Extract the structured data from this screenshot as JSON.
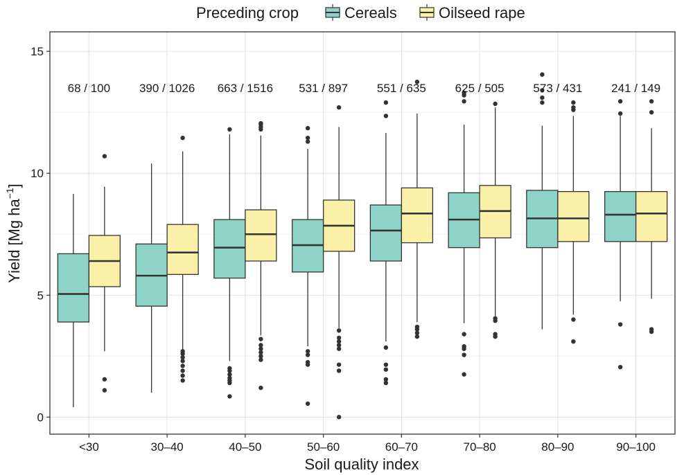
{
  "chart_data": {
    "type": "boxplot",
    "xlabel": "Soil quality index",
    "ylabel": "Yield [Mg ha",
    "ylabel_sup": "−1",
    "ylabel_close": "]",
    "ylim": [
      -0.7,
      15.8
    ],
    "yticks": [
      "0",
      "5",
      "10",
      "15"
    ],
    "grid": true,
    "legend": {
      "position": "top",
      "title": "Preceding crop",
      "entries": [
        "Cereals",
        "Oilseed rape"
      ]
    },
    "categories": [
      "<30",
      "30–40",
      "40–50",
      "50–60",
      "60–70",
      "70–80",
      "80–90",
      "90–100"
    ],
    "counts": [
      "68 / 100",
      "390 / 1026",
      "663 / 1516",
      "531 / 897",
      "551 / 635",
      "625 / 505",
      "573 / 431",
      "241 / 149"
    ],
    "series": [
      {
        "name": "Cereals",
        "color": "#8dd3c7",
        "boxes": [
          {
            "whisker_low": 0.4,
            "q1": 3.9,
            "median": 5.05,
            "q3": 6.7,
            "whisker_high": 9.15,
            "outliers": []
          },
          {
            "whisker_low": 1.0,
            "q1": 4.55,
            "median": 5.8,
            "q3": 7.1,
            "whisker_high": 10.4,
            "outliers": []
          },
          {
            "whisker_low": 2.3,
            "q1": 5.7,
            "median": 6.95,
            "q3": 8.1,
            "whisker_high": 11.6,
            "outliers": [
              0.85,
              1.4,
              1.5,
              1.6,
              1.75,
              1.9,
              2.0,
              11.8
            ]
          },
          {
            "whisker_low": 2.9,
            "q1": 5.95,
            "median": 7.05,
            "q3": 8.1,
            "whisker_high": 11.0,
            "outliers": [
              0.55,
              2.15,
              2.25,
              2.55,
              2.7,
              11.3,
              11.45,
              11.85
            ]
          },
          {
            "whisker_low": 3.1,
            "q1": 6.4,
            "median": 7.65,
            "q3": 8.7,
            "whisker_high": 11.65,
            "outliers": [
              1.4,
              1.55,
              1.95,
              2.15,
              2.85,
              12.35,
              12.9
            ]
          },
          {
            "whisker_low": 3.85,
            "q1": 6.95,
            "median": 8.1,
            "q3": 9.2,
            "whisker_high": 12.0,
            "outliers": [
              1.75,
              2.55,
              2.8,
              2.9,
              3.4,
              12.95,
              13.2,
              13.3
            ]
          },
          {
            "whisker_low": 3.6,
            "q1": 6.95,
            "median": 8.15,
            "q3": 9.3,
            "whisker_high": 11.95,
            "outliers": [
              12.9,
              13.1,
              13.4,
              14.05
            ]
          },
          {
            "whisker_low": 4.75,
            "q1": 7.2,
            "median": 8.3,
            "q3": 9.25,
            "whisker_high": 12.35,
            "outliers": [
              2.05,
              3.8,
              12.45,
              12.95
            ]
          }
        ]
      },
      {
        "name": "Oilseed rape",
        "color": "#fbf0a8",
        "boxes": [
          {
            "whisker_low": 2.7,
            "q1": 5.35,
            "median": 6.4,
            "q3": 7.45,
            "whisker_high": 9.45,
            "outliers": [
              1.1,
              1.55,
              10.7
            ]
          },
          {
            "whisker_low": 2.75,
            "q1": 5.85,
            "median": 6.75,
            "q3": 7.9,
            "whisker_high": 10.9,
            "outliers": [
              1.5,
              1.7,
              1.9,
              2.1,
              2.3,
              2.45,
              2.6,
              2.7,
              11.45
            ]
          },
          {
            "whisker_low": 3.35,
            "q1": 6.4,
            "median": 7.5,
            "q3": 8.5,
            "whisker_high": 11.55,
            "outliers": [
              1.2,
              2.35,
              2.5,
              2.65,
              2.8,
              2.95,
              3.2,
              11.8,
              11.9,
              12.0,
              12.05
            ]
          },
          {
            "whisker_low": 3.65,
            "q1": 6.8,
            "median": 7.85,
            "q3": 8.9,
            "whisker_high": 11.9,
            "outliers": [
              0.0,
              1.9,
              2.15,
              2.8,
              2.95,
              3.1,
              3.25,
              3.55,
              12.7
            ]
          },
          {
            "whisker_low": 3.9,
            "q1": 7.15,
            "median": 8.35,
            "q3": 9.4,
            "whisker_high": 12.45,
            "outliers": [
              3.3,
              3.45,
              3.6,
              3.7,
              13.75
            ]
          },
          {
            "whisker_low": 4.15,
            "q1": 7.35,
            "median": 8.45,
            "q3": 9.5,
            "whisker_high": 12.7,
            "outliers": [
              3.3,
              3.4,
              3.95,
              4.05,
              12.85
            ]
          },
          {
            "whisker_low": 4.2,
            "q1": 7.2,
            "median": 8.15,
            "q3": 9.25,
            "whisker_high": 12.35,
            "outliers": [
              3.1,
              4.0,
              12.6,
              12.7,
              12.9
            ]
          },
          {
            "whisker_low": 4.85,
            "q1": 7.2,
            "median": 8.35,
            "q3": 9.25,
            "whisker_high": 11.85,
            "outliers": [
              3.5,
              3.6,
              12.5,
              12.95
            ]
          }
        ]
      }
    ]
  }
}
